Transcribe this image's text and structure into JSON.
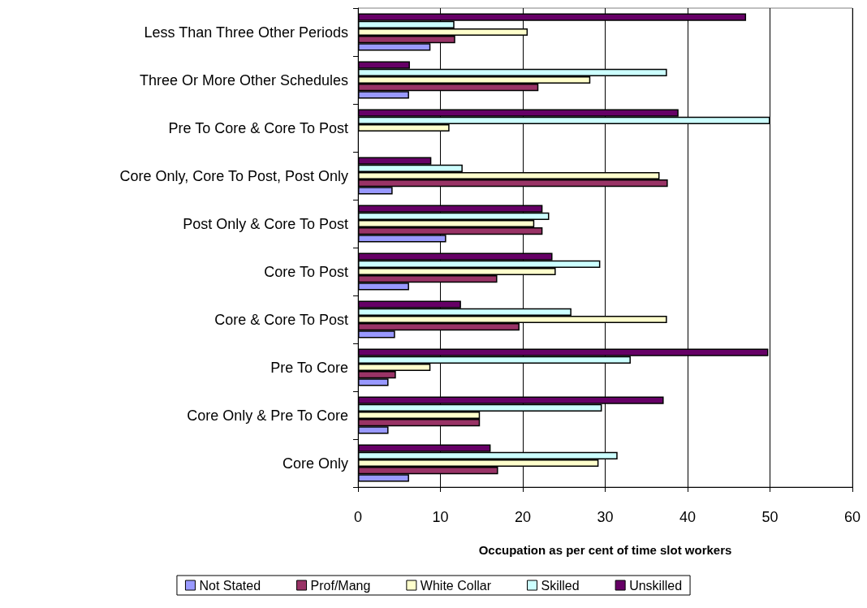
{
  "chart_data": {
    "type": "bar",
    "orientation": "horizontal",
    "xlabel": "Occupation as per cent of time slot workers",
    "categories": [
      "Less Than Three Other Periods",
      "Three Or More Other Schedules",
      "Pre To Core & Core To Post",
      "Core Only, Core To Post, Post Only",
      "Post Only & Core To Post",
      "Core To Post",
      "Core & Core To Post",
      "Pre To Core",
      "Core Only & Pre To Core",
      "Core Only"
    ],
    "series": [
      {
        "name": "Not Stated",
        "color": "#9999ff",
        "values": [
          8.8,
          6.2,
          null,
          4.2,
          10.7,
          6.2,
          4.5,
          3.7,
          3.7,
          6.2
        ]
      },
      {
        "name": "Prof/Mang",
        "color": "#993366",
        "values": [
          11.8,
          21.9,
          null,
          37.6,
          22.4,
          16.9,
          19.6,
          4.6,
          14.8,
          17.0
        ]
      },
      {
        "name": "White Collar",
        "color": "#ffffcc",
        "values": [
          20.6,
          28.2,
          11.1,
          36.6,
          21.4,
          24.0,
          37.5,
          8.8,
          14.8,
          29.2
        ]
      },
      {
        "name": "Skilled",
        "color": "#ccffff",
        "values": [
          11.7,
          37.5,
          50,
          12.7,
          23.2,
          29.4,
          25.9,
          33.1,
          29.6,
          31.5
        ]
      },
      {
        "name": "Unskilled",
        "color": "#660066",
        "values": [
          47.1,
          6.3,
          38.9,
          8.9,
          22.4,
          23.6,
          12.5,
          49.8,
          37.1,
          16.1
        ]
      }
    ],
    "xlim": [
      0,
      60
    ],
    "xticks": [
      0,
      10,
      20,
      30,
      40,
      50,
      60
    ],
    "grid": "x",
    "legend": "bottom"
  }
}
